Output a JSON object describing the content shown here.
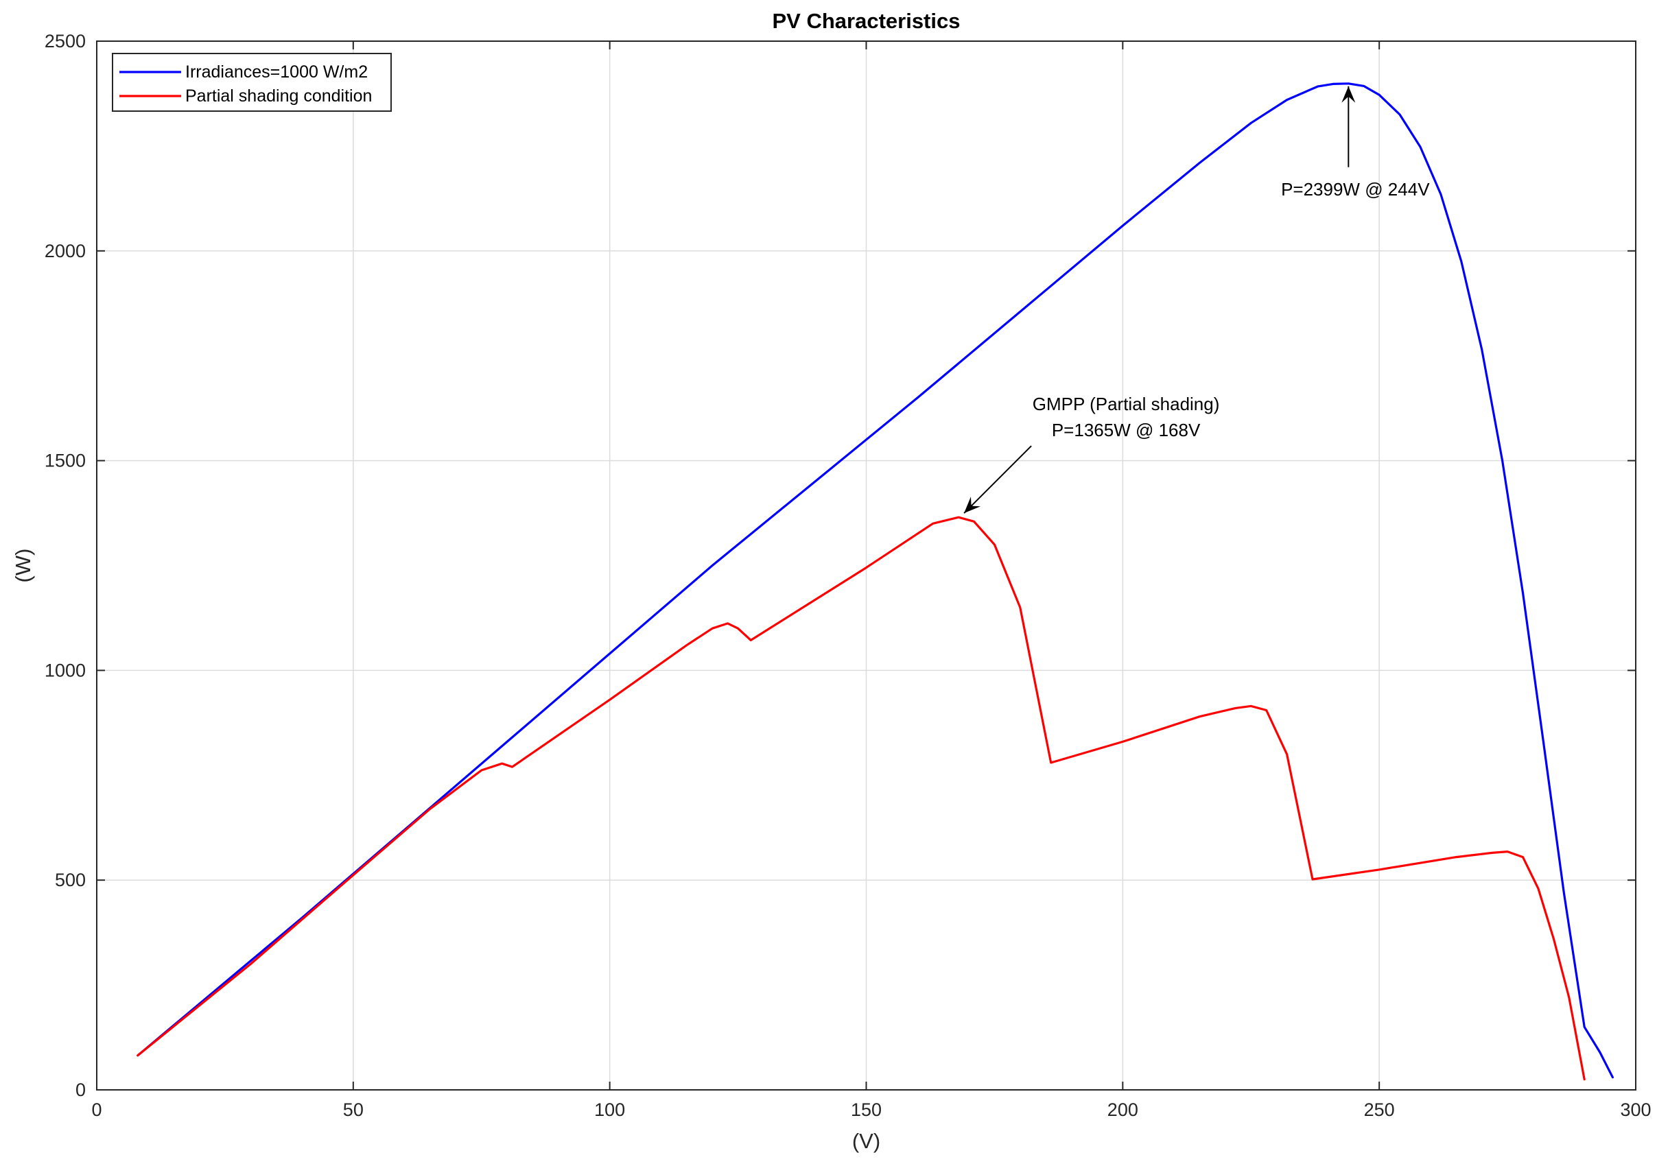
{
  "chart_data": {
    "type": "line",
    "title": "PV Characteristics",
    "xlabel": "(V)",
    "ylabel": "(W)",
    "xlim": [
      0,
      300
    ],
    "ylim": [
      0,
      2500
    ],
    "xticks": [
      0,
      50,
      100,
      150,
      200,
      250,
      300
    ],
    "yticks": [
      0,
      500,
      1000,
      1500,
      2000,
      2500
    ],
    "grid": true,
    "legend_position": "top-left",
    "series": [
      {
        "name": "Irradiances=1000 W/m2",
        "color": "#0000ff",
        "x": [
          8,
          20,
          40,
          60,
          80,
          100,
          120,
          140,
          160,
          180,
          200,
          215,
          225,
          232,
          238,
          241,
          244,
          247,
          250,
          254,
          258,
          262,
          266,
          270,
          274,
          278,
          282,
          286,
          290,
          293,
          295.5
        ],
        "y": [
          82,
          205,
          410,
          620,
          830,
          1040,
          1250,
          1450,
          1650,
          1855,
          2060,
          2210,
          2305,
          2360,
          2392,
          2398,
          2399,
          2393,
          2372,
          2325,
          2248,
          2135,
          1975,
          1765,
          1500,
          1185,
          830,
          470,
          150,
          90,
          30
        ]
      },
      {
        "name": "Partial shading condition",
        "color": "#ff0000",
        "x": [
          8,
          30,
          50,
          65,
          75,
          79,
          81,
          100,
          115,
          120,
          123,
          125,
          127.5,
          150,
          163,
          168,
          171,
          175,
          180,
          186,
          200,
          215,
          222,
          225,
          228,
          232,
          237,
          250,
          265,
          272,
          275,
          278,
          281,
          284,
          287,
          290
        ],
        "y": [
          82,
          300,
          512,
          670,
          762,
          778,
          770,
          930,
          1060,
          1100,
          1112,
          1100,
          1072,
          1245,
          1350,
          1365,
          1355,
          1300,
          1150,
          780,
          830,
          890,
          910,
          915,
          905,
          800,
          502,
          525,
          555,
          565,
          568,
          555,
          480,
          360,
          220,
          25
        ]
      }
    ],
    "annotations": [
      {
        "text": "P=2399W @ 244V",
        "x": 244,
        "y": 2399
      },
      {
        "text": "GMPP (Partial shading)",
        "x": 168,
        "y": 1365
      },
      {
        "text": "P=1365W @ 168V",
        "x": 168,
        "y": 1365
      }
    ]
  }
}
